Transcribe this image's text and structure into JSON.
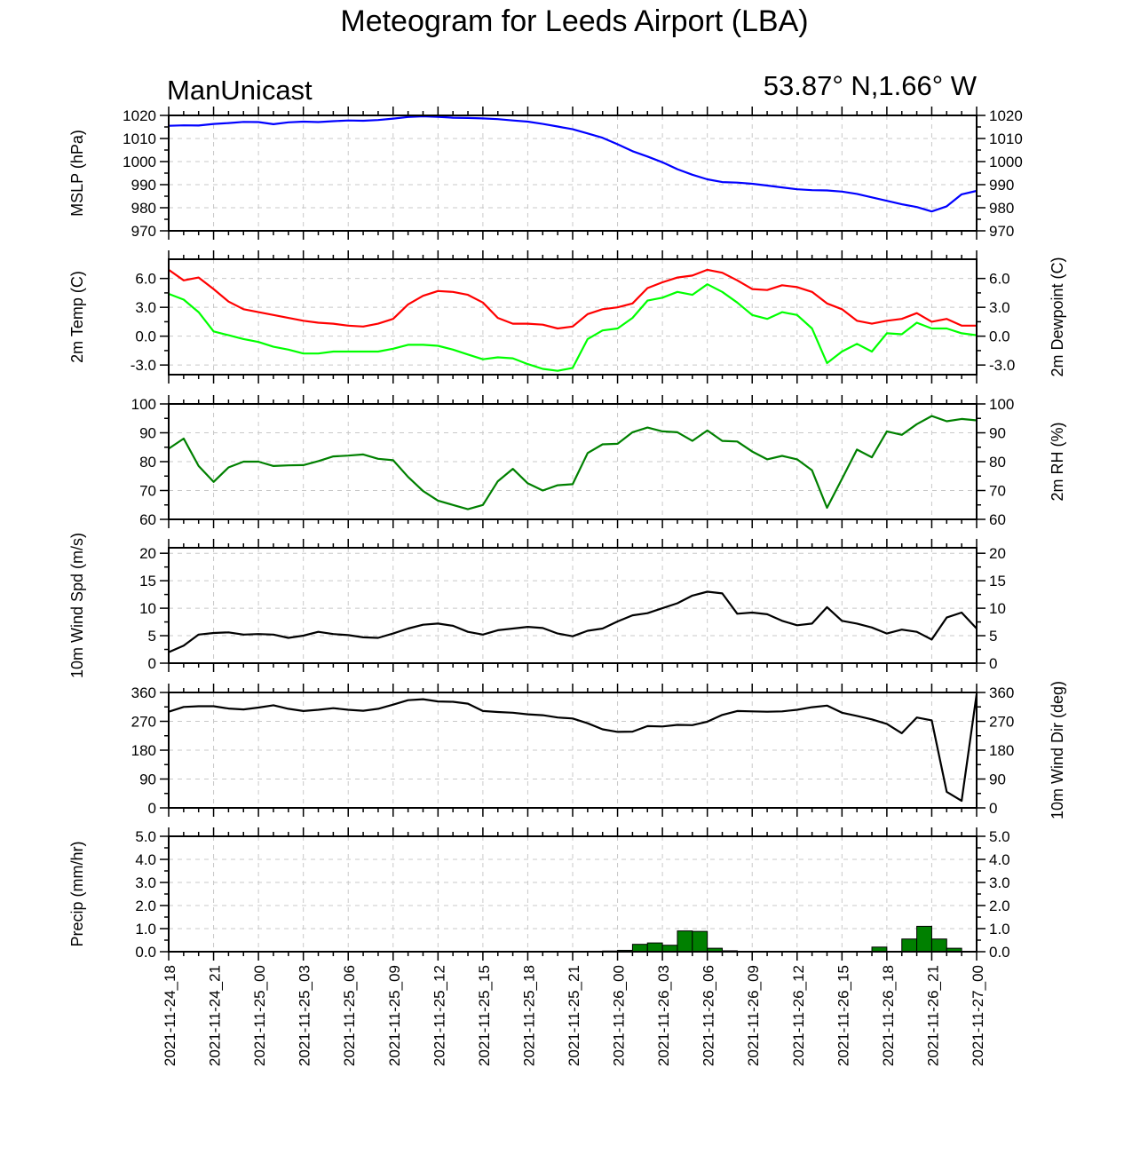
{
  "header": {
    "title": "Meteogram for Leeds Airport (LBA)",
    "left_label": "ManUnicast",
    "right_label": "53.87° N,1.66° W"
  },
  "x_ticks": [
    "2021-11-24_18",
    "2021-11-24_21",
    "2021-11-25_00",
    "2021-11-25_03",
    "2021-11-25_06",
    "2021-11-25_09",
    "2021-11-25_12",
    "2021-11-25_15",
    "2021-11-25_18",
    "2021-11-25_21",
    "2021-11-26_00",
    "2021-11-26_03",
    "2021-11-26_06",
    "2021-11-26_09",
    "2021-11-26_12",
    "2021-11-26_15",
    "2021-11-26_18",
    "2021-11-26_21",
    "2021-11-27_00"
  ],
  "colors": {
    "mslp": "#0000ff",
    "temp": "#ff0000",
    "dewpoint": "#00ff00",
    "rh": "#008000",
    "wind_speed": "#000000",
    "wind_dir": "#000000",
    "precip": "#008000"
  },
  "chart_data": [
    {
      "type": "line",
      "ylabel_left": "MSLP (hPa)",
      "ylim": [
        970,
        1020
      ],
      "yticks": [
        "970",
        "980",
        "990",
        "1000",
        "1010",
        "1020"
      ],
      "right_ticks": true,
      "x_hours": [
        0,
        1,
        2,
        3,
        4,
        5,
        6,
        7,
        8,
        9,
        10,
        11,
        12,
        13,
        14,
        15,
        16,
        17,
        18,
        19,
        20,
        21,
        22,
        23,
        24,
        25,
        26,
        27,
        28,
        29,
        30,
        31,
        32,
        33,
        34,
        35,
        36,
        37,
        38,
        39,
        40,
        41,
        42,
        43,
        44,
        45,
        46,
        47,
        48,
        49,
        50,
        51,
        52,
        53,
        54
      ],
      "series": [
        {
          "color_key": "mslp",
          "values": [
            1015.5,
            1015.7,
            1015.6,
            1016.3,
            1016.7,
            1017.2,
            1017.1,
            1016.2,
            1017,
            1017.3,
            1017.1,
            1017.5,
            1017.8,
            1017.7,
            1018,
            1018.6,
            1019.3,
            1019.6,
            1019.4,
            1019,
            1018.9,
            1018.7,
            1018.4,
            1017.8,
            1017.3,
            1016.3,
            1015.2,
            1014,
            1012.2,
            1010.3,
            1007.5,
            1004.5,
            1002.2,
            999.7,
            996.7,
            994.3,
            992.3,
            991.1,
            990.9,
            990.4,
            989.6,
            988.8,
            988,
            987.6,
            987.5,
            987,
            986,
            984.5,
            983,
            981.5,
            980.3,
            978.4,
            980.6,
            985.8,
            987.3
          ]
        }
      ]
    },
    {
      "type": "line",
      "ylabel_left": "2m Temp (C)",
      "ylabel_right": "2m Dewpoint (C)",
      "ylim": [
        -4.0,
        8.0
      ],
      "yticks": [
        "-3.0",
        "0.0",
        "3.0",
        "6.0"
      ],
      "ytick_values": [
        -3,
        0,
        3,
        6
      ],
      "right_ticks": true,
      "x_hours": [
        0,
        1,
        2,
        3,
        4,
        5,
        6,
        7,
        8,
        9,
        10,
        11,
        12,
        13,
        14,
        15,
        16,
        17,
        18,
        19,
        20,
        21,
        22,
        23,
        24,
        25,
        26,
        27,
        28,
        29,
        30,
        31,
        32,
        33,
        34,
        35,
        36,
        37,
        38,
        39,
        40,
        41,
        42,
        43,
        44,
        45,
        46,
        47,
        48,
        49,
        50,
        51,
        52,
        53,
        54
      ],
      "series": [
        {
          "color_key": "temp",
          "values": [
            6.9,
            5.8,
            6.1,
            4.9,
            3.6,
            2.8,
            2.5,
            2.2,
            1.9,
            1.6,
            1.4,
            1.3,
            1.1,
            1.0,
            1.3,
            1.8,
            3.3,
            4.2,
            4.7,
            4.6,
            4.3,
            3.5,
            1.9,
            1.3,
            1.3,
            1.2,
            0.8,
            1.0,
            2.3,
            2.8,
            3.0,
            3.4,
            5.0,
            5.6,
            6.1,
            6.3,
            6.9,
            6.6,
            5.8,
            4.9,
            4.8,
            5.3,
            5.1,
            4.6,
            3.4,
            2.8,
            1.6,
            1.3,
            1.6,
            1.8,
            2.4,
            1.5,
            1.8,
            1.1,
            1.1
          ]
        },
        {
          "color_key": "dewpoint",
          "values": [
            4.4,
            3.8,
            2.5,
            0.5,
            0.1,
            -0.3,
            -0.6,
            -1.1,
            -1.4,
            -1.8,
            -1.8,
            -1.6,
            -1.6,
            -1.6,
            -1.6,
            -1.3,
            -0.9,
            -0.9,
            -1.0,
            -1.4,
            -1.9,
            -2.4,
            -2.2,
            -2.3,
            -2.9,
            -3.4,
            -3.6,
            -3.3,
            -0.3,
            0.6,
            0.8,
            1.9,
            3.7,
            4.0,
            4.6,
            4.3,
            5.4,
            4.6,
            3.5,
            2.2,
            1.8,
            2.5,
            2.2,
            0.8,
            -2.8,
            -1.6,
            -0.8,
            -1.6,
            0.3,
            0.2,
            1.4,
            0.8,
            0.8,
            0.3,
            0.1
          ]
        }
      ]
    },
    {
      "type": "line",
      "ylabel_right": "2m RH (%)",
      "ylim": [
        60,
        100
      ],
      "yticks": [
        "60",
        "70",
        "80",
        "90",
        "100"
      ],
      "right_ticks": true,
      "x_hours": [
        0,
        1,
        2,
        3,
        4,
        5,
        6,
        7,
        8,
        9,
        10,
        11,
        12,
        13,
        14,
        15,
        16,
        17,
        18,
        19,
        20,
        21,
        22,
        23,
        24,
        25,
        26,
        27,
        28,
        29,
        30,
        31,
        32,
        33,
        34,
        35,
        36,
        37,
        38,
        39,
        40,
        41,
        42,
        43,
        44,
        45,
        46,
        47,
        48,
        49,
        50,
        51,
        52,
        53,
        54
      ],
      "series": [
        {
          "color_key": "rh",
          "values": [
            84.5,
            88,
            78.5,
            73,
            78,
            80,
            80,
            78.5,
            78.7,
            78.8,
            80.2,
            81.8,
            82.1,
            82.5,
            81,
            80.5,
            74.7,
            69.8,
            66.5,
            65,
            63.5,
            65,
            73.2,
            77.5,
            72.5,
            70,
            71.8,
            72.2,
            83,
            86,
            86.2,
            90.2,
            91.8,
            90.5,
            90.2,
            87.2,
            90.8,
            87.2,
            87,
            83.5,
            80.8,
            82,
            80.8,
            77,
            64,
            74,
            84.2,
            81.5,
            90.5,
            89.3,
            93,
            95.8,
            94,
            94.8,
            94.3
          ]
        }
      ]
    },
    {
      "type": "line",
      "ylabel_left": "10m Wind Spd (m/s)",
      "ylim": [
        0,
        21
      ],
      "yticks": [
        "0",
        "5",
        "10",
        "15",
        "20"
      ],
      "ytick_values": [
        0,
        5,
        10,
        15,
        20
      ],
      "right_ticks": true,
      "x_hours": [
        0,
        1,
        2,
        3,
        4,
        5,
        6,
        7,
        8,
        9,
        10,
        11,
        12,
        13,
        14,
        15,
        16,
        17,
        18,
        19,
        20,
        21,
        22,
        23,
        24,
        25,
        26,
        27,
        28,
        29,
        30,
        31,
        32,
        33,
        34,
        35,
        36,
        37,
        38,
        39,
        40,
        41,
        42,
        43,
        44,
        45,
        46,
        47,
        48,
        49,
        50,
        51,
        52,
        53,
        54
      ],
      "series": [
        {
          "color_key": "wind_speed",
          "values": [
            2,
            3.2,
            5.2,
            5.5,
            5.6,
            5.2,
            5.3,
            5.2,
            4.6,
            5,
            5.7,
            5.3,
            5.1,
            4.7,
            4.6,
            5.4,
            6.3,
            7,
            7.2,
            6.8,
            5.7,
            5.2,
            6,
            6.3,
            6.6,
            6.4,
            5.4,
            4.9,
            5.9,
            6.3,
            7.6,
            8.7,
            9.1,
            10,
            10.9,
            12.3,
            13,
            12.7,
            9,
            9.2,
            8.9,
            7.7,
            6.9,
            7.2,
            10.2,
            7.7,
            7.2,
            6.5,
            5.4,
            6.1,
            5.7,
            4.3,
            8.3,
            9.2,
            6.3
          ]
        }
      ]
    },
    {
      "type": "line",
      "ylabel_right": "10m Wind Dir (deg)",
      "ylim": [
        0,
        360
      ],
      "yticks": [
        "0",
        "90",
        "180",
        "270",
        "360"
      ],
      "right_ticks": true,
      "x_hours": [
        0,
        1,
        2,
        3,
        4,
        5,
        6,
        7,
        8,
        9,
        10,
        11,
        12,
        13,
        14,
        15,
        16,
        17,
        18,
        19,
        20,
        21,
        22,
        23,
        24,
        25,
        26,
        27,
        28,
        29,
        30,
        31,
        32,
        33,
        34,
        35,
        36,
        37,
        38,
        39,
        40,
        41,
        42,
        43,
        44,
        45,
        46,
        47,
        48,
        49,
        50,
        51,
        52,
        53,
        54
      ],
      "series": [
        {
          "color_key": "wind_dir",
          "values": [
            300,
            315,
            317,
            317,
            310,
            307,
            313,
            320,
            309,
            302,
            306,
            311,
            306,
            303,
            309,
            322,
            336,
            339,
            332,
            331,
            325,
            302,
            299,
            297,
            292,
            289,
            282,
            279,
            264,
            245,
            237,
            238,
            255,
            254,
            259,
            258,
            269,
            290,
            302,
            301,
            300,
            301,
            306,
            314,
            319,
            297,
            287,
            276,
            262,
            233,
            282,
            273,
            50,
            22,
            355
          ]
        }
      ]
    },
    {
      "type": "bar",
      "ylabel_left": "Precip (mm/hr)",
      "ylim": [
        0,
        5
      ],
      "yticks": [
        "0.0",
        "1.0",
        "2.0",
        "3.0",
        "4.0",
        "5.0"
      ],
      "right_ticks": true,
      "bars": [
        {
          "x_hours": 27,
          "value": 0.01
        },
        {
          "x_hours": 28,
          "value": 0.02
        },
        {
          "x_hours": 29,
          "value": 0.03
        },
        {
          "x_hours": 30,
          "value": 0.06
        },
        {
          "x_hours": 31,
          "value": 0.32
        },
        {
          "x_hours": 32,
          "value": 0.38
        },
        {
          "x_hours": 33,
          "value": 0.28
        },
        {
          "x_hours": 34,
          "value": 0.9
        },
        {
          "x_hours": 35,
          "value": 0.88
        },
        {
          "x_hours": 36,
          "value": 0.15
        },
        {
          "x_hours": 37,
          "value": 0.04
        },
        {
          "x_hours": 47,
          "value": 0.2
        },
        {
          "x_hours": 49,
          "value": 0.55
        },
        {
          "x_hours": 50,
          "value": 1.1
        },
        {
          "x_hours": 51,
          "value": 0.55
        },
        {
          "x_hours": 52,
          "value": 0.15
        }
      ]
    }
  ]
}
